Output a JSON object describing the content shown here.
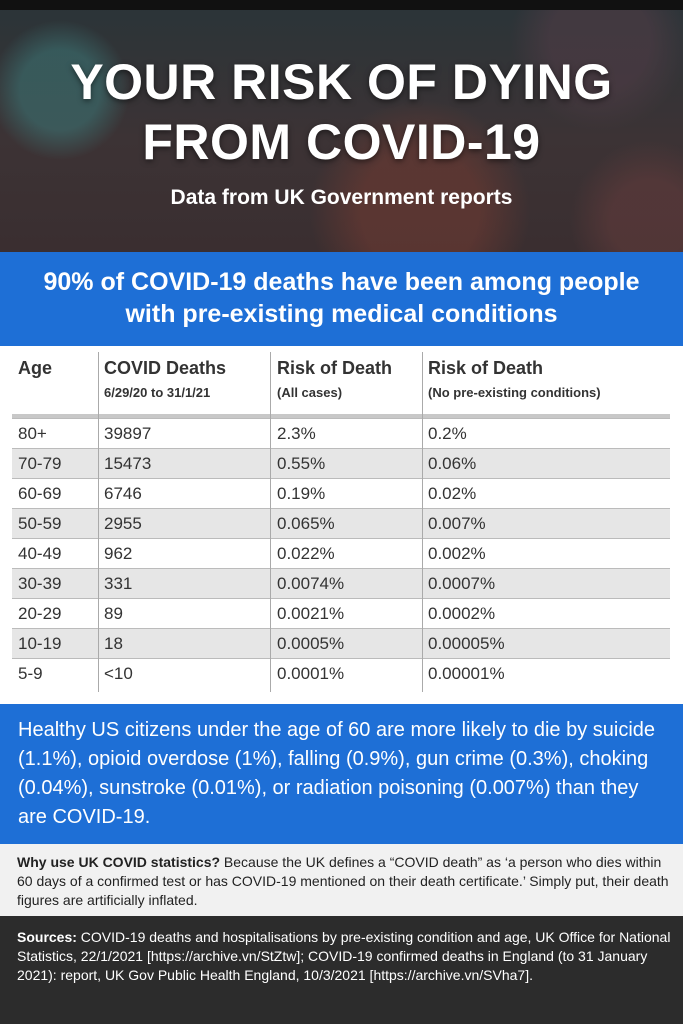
{
  "header": {
    "title_line1": "YOUR RISK OF DYING",
    "title_line2": "FROM COVID-19",
    "subtitle": "Data from UK Government reports"
  },
  "banner_top": {
    "text": "90% of COVID-19 deaths have been among people with pre-existing medical conditions"
  },
  "table": {
    "headers": [
      {
        "main": "Age",
        "sub": ""
      },
      {
        "main": "COVID Deaths",
        "sub": "6/29/20 to 31/1/21"
      },
      {
        "main": "Risk of Death",
        "sub": "(All cases)"
      },
      {
        "main": "Risk of Death",
        "sub": "(No pre-existing conditions)"
      }
    ],
    "rows": [
      [
        "80+",
        "39897",
        "2.3%",
        "0.2%"
      ],
      [
        "70-79",
        "15473",
        "0.55%",
        "0.06%"
      ],
      [
        "60-69",
        "6746",
        "0.19%",
        "0.02%"
      ],
      [
        "50-59",
        "2955",
        "0.065%",
        "0.007%"
      ],
      [
        "40-49",
        "962",
        "0.022%",
        "0.002%"
      ],
      [
        "30-39",
        "331",
        "0.0074%",
        "0.0007%"
      ],
      [
        "20-29",
        "89",
        "0.0021%",
        "0.0002%"
      ],
      [
        "10-19",
        "18",
        "0.0005%",
        "0.00005%"
      ],
      [
        "5-9",
        "<10",
        "0.0001%",
        "0.00001%"
      ]
    ]
  },
  "banner_bottom": {
    "text": "Healthy US citizens under the age of 60 are more likely to die by suicide (1.1%), opioid overdose (1%), falling (0.9%), gun crime (0.3%), choking (0.04%), sunstroke (0.01%), or radiation poisoning (0.007%) than they are COVID-19."
  },
  "why": {
    "label": "Why use UK COVID statistics?",
    "text": " Because the UK defines a “COVID death” as ‘a person who dies within 60 days of a confirmed test or has COVID-19 mentioned on their death certificate.’ Simply put, their death figures are artificially inflated."
  },
  "sources": {
    "label": "Sources:",
    "text": " COVID-19 deaths and hospitalisations by pre-existing condition and age, UK Office for National Statistics, 22/1/2021 [https://archive.vn/StZtw]; COVID-19 confirmed deaths in England (to 31 January 2021): report, UK Gov Public Health England, 10/3/2021 [https://archive.vn/SVha7]."
  },
  "colors": {
    "banner_blue": "#1e6fd6",
    "row_shade": "#e6e6e6",
    "sources_bg": "#2c2c2c"
  }
}
